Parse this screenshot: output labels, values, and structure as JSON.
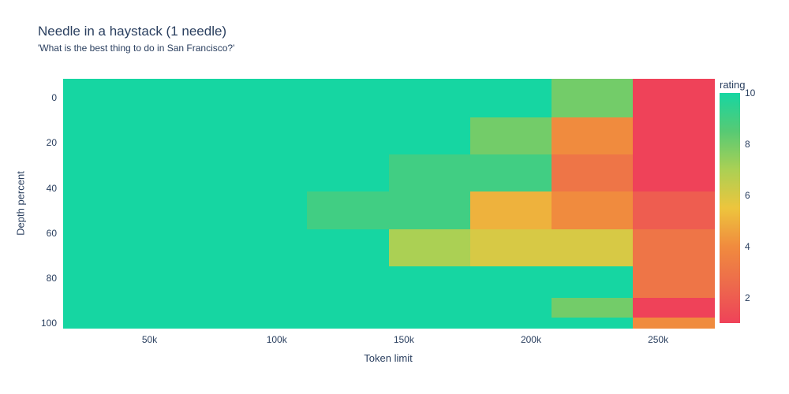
{
  "chart_data": {
    "type": "heatmap",
    "title": "Needle in a haystack (1 needle)",
    "subtitle": "'What is the best thing to do in San Francisco?'",
    "xlabel": "Token limit",
    "ylabel": "Depth percent",
    "x_token_limits": [
      32000,
      64000,
      96000,
      128000,
      160000,
      192000,
      224000,
      256000
    ],
    "y_depth_percents": [
      0,
      17,
      33,
      50,
      67,
      83,
      95,
      100
    ],
    "z_ratings": [
      [
        10,
        10,
        10,
        10,
        10,
        10,
        8,
        1
      ],
      [
        10,
        10,
        10,
        10,
        10,
        8,
        4,
        1
      ],
      [
        10,
        10,
        10,
        10,
        9,
        9,
        3,
        1
      ],
      [
        10,
        10,
        10,
        9,
        9,
        5,
        4,
        2
      ],
      [
        10,
        10,
        10,
        10,
        7,
        6,
        6,
        3
      ],
      [
        10,
        10,
        10,
        10,
        10,
        10,
        10,
        3
      ],
      [
        10,
        10,
        10,
        10,
        10,
        10,
        8,
        1
      ],
      [
        10,
        10,
        10,
        10,
        10,
        10,
        10,
        4
      ]
    ],
    "x_ticks": [
      {
        "value": 50000,
        "label": "50k"
      },
      {
        "value": 100000,
        "label": "100k"
      },
      {
        "value": 150000,
        "label": "150k"
      },
      {
        "value": 200000,
        "label": "200k"
      },
      {
        "value": 250000,
        "label": "250k"
      }
    ],
    "y_ticks": [
      {
        "value": 0,
        "label": "0"
      },
      {
        "value": 20,
        "label": "20"
      },
      {
        "value": 40,
        "label": "40"
      },
      {
        "value": 60,
        "label": "60"
      },
      {
        "value": 80,
        "label": "80"
      },
      {
        "value": 100,
        "label": "100"
      }
    ],
    "colorbar": {
      "title": "rating",
      "min": 1,
      "max": 10,
      "ticks": [
        {
          "value": 10,
          "label": "10"
        },
        {
          "value": 8,
          "label": "8"
        },
        {
          "value": 6,
          "label": "6"
        },
        {
          "value": 4,
          "label": "4"
        },
        {
          "value": 2,
          "label": "2"
        }
      ]
    },
    "colorscale": [
      {
        "value": 1,
        "color": "#ef4259"
      },
      {
        "value": 2.5,
        "color": "#ed6a4c"
      },
      {
        "value": 4,
        "color": "#f08b3e"
      },
      {
        "value": 5.5,
        "color": "#edc53d"
      },
      {
        "value": 7,
        "color": "#abd054"
      },
      {
        "value": 8.5,
        "color": "#57ca74"
      },
      {
        "value": 10,
        "color": "#16d6a2"
      }
    ],
    "text_color": "#2a3f5f",
    "background_color": "#ffffff",
    "legend_position": "right",
    "grid": false
  }
}
